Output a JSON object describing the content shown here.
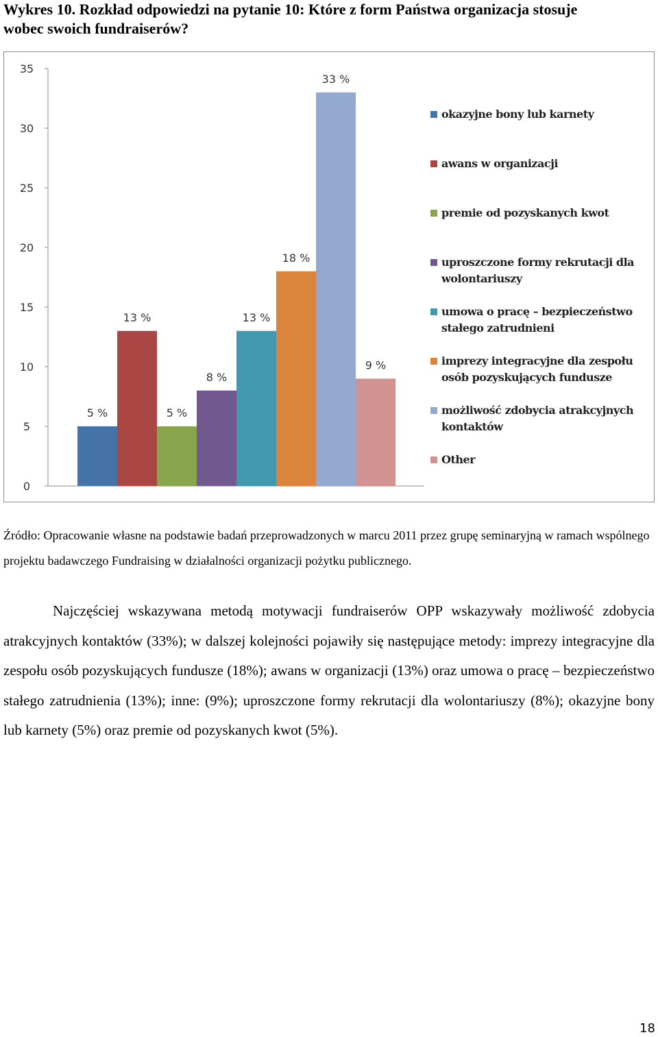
{
  "heading": "Wykres 10. Rozkład odpowiedzi na pytanie 10: Które z form Państwa organizacja stosuje wobec swoich fundraiserów?",
  "chart_data": {
    "type": "bar",
    "ylim": [
      0,
      35
    ],
    "yticks": [
      0,
      5,
      10,
      15,
      20,
      25,
      30,
      35
    ],
    "grid": false,
    "legend": "right",
    "series": [
      {
        "name": "okazyjne bony lub karnety",
        "color": "#4572a7",
        "values": [
          5
        ],
        "value_labels": [
          "5 %"
        ]
      },
      {
        "name": "awans w organizacji",
        "color": "#aa4643",
        "values": [
          13
        ],
        "value_labels": [
          "13 %"
        ]
      },
      {
        "name": "premie od pozyskanych kwot",
        "color": "#89a54e",
        "values": [
          5
        ],
        "value_labels": [
          "5 %"
        ]
      },
      {
        "name": "uproszczone formy rekrutacji dla wolontariuszy",
        "color": "#71588f",
        "values": [
          8
        ],
        "value_labels": [
          "8 %"
        ]
      },
      {
        "name": "umowa o pracę – bezpieczeństwo stałego zatrudnieni",
        "color": "#4198af",
        "values": [
          13
        ],
        "value_labels": [
          "13 %"
        ]
      },
      {
        "name": "imprezy integracyjne dla zespołu osób pozyskujących fundusze",
        "color": "#db843d",
        "values": [
          18
        ],
        "value_labels": [
          "18 %"
        ]
      },
      {
        "name": "możliwość zdobycia atrakcyjnych kontaktów",
        "color": "#93a9cf",
        "values": [
          33
        ],
        "value_labels": [
          "33 %"
        ]
      },
      {
        "name": "Other",
        "color": "#d19392",
        "values": [
          9
        ],
        "value_labels": [
          "9 %"
        ]
      }
    ]
  },
  "source": "Źródło: Opracowanie własne na podstawie badań przeprowadzonych w marcu 2011 przez grupę seminaryjną w ramach wspólnego projektu badawczego Fundraising w działalności organizacji pożytku publicznego.",
  "paragraph": "Najczęściej wskazywana metodą motywacji fundraiserów OPP wskazywały możliwość zdobycia atrakcyjnych kontaktów (33%); w dalszej kolejności pojawiły się następujące metody: imprezy integracyjne dla zespołu osób pozyskujących fundusze (18%); awans w organizacji (13%) oraz umowa o pracę – bezpieczeństwo stałego zatrudnienia (13%); inne: (9%); uproszczone formy rekrutacji dla wolontariuszy (8%); okazyjne bony lub karnety (5%) oraz premie od pozyskanych kwot (5%).",
  "page_number": "18"
}
